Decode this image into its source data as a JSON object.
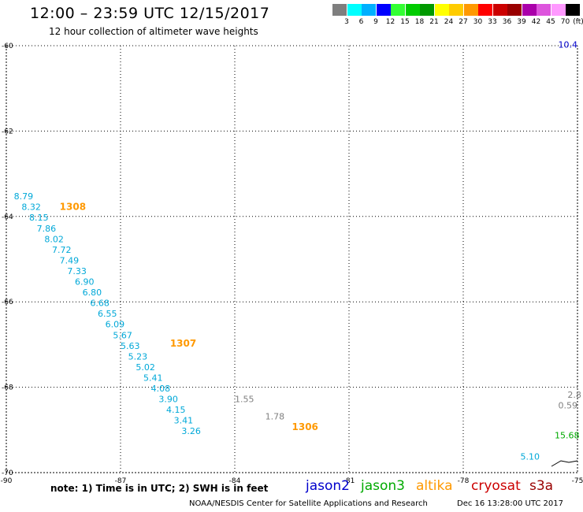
{
  "header": {
    "title": "12:00 – 23:59 UTC 12/15/2017",
    "subtitle": "12 hour collection of altimeter wave heights"
  },
  "legend": {
    "colors": [
      "#7f7f7f",
      "#00ffff",
      "#00b0ff",
      "#0000ff",
      "#33ff33",
      "#00cc00",
      "#009900",
      "#ffff00",
      "#ffcc00",
      "#ff9900",
      "#ff0000",
      "#cc0000",
      "#990000",
      "#aa00aa",
      "#dd55dd",
      "#ff99ff",
      "#000000"
    ],
    "ticks": [
      "3",
      "6",
      "9",
      "12",
      "15",
      "18",
      "21",
      "24",
      "27",
      "30",
      "33",
      "36",
      "39",
      "42",
      "45",
      "70"
    ],
    "unit": "(ft)"
  },
  "chart_data": {
    "type": "scatter",
    "title": "12:00 – 23:59 UTC 12/15/2017",
    "subtitle": "12 hour collection of altimeter wave heights",
    "xlim": [
      -90,
      -75
    ],
    "ylim": [
      -70,
      -60
    ],
    "x_ticks": [
      "-90",
      "-87",
      "-84",
      "-81",
      "-78",
      "-75"
    ],
    "y_ticks": [
      "-60",
      "-62",
      "-64",
      "-66",
      "-68",
      "-70"
    ],
    "grid": true,
    "series": [
      {
        "name": "jason2",
        "color": "#0000cc",
        "points": [
          {
            "lon": -75.0,
            "lat": -60.05,
            "label": "10.4"
          }
        ]
      },
      {
        "name": "jason3",
        "color": "#00aa00",
        "points": [
          {
            "lon": -75.6,
            "lat": -69.2,
            "label": "15.68"
          }
        ]
      },
      {
        "name": "altika",
        "color": "#ff9900",
        "points": [
          {
            "lon": -88.6,
            "lat": -63.85,
            "label": "1308"
          },
          {
            "lon": -85.7,
            "lat": -67.05,
            "label": "1307"
          },
          {
            "lon": -82.5,
            "lat": -69.0,
            "label": "1306"
          }
        ]
      },
      {
        "name": "cyan",
        "color": "#00a8d8",
        "points": [
          {
            "lon": -89.8,
            "lat": -63.6,
            "label": "8.79"
          },
          {
            "lon": -89.6,
            "lat": -63.85,
            "label": "8.32"
          },
          {
            "lon": -89.4,
            "lat": -64.1,
            "label": "8.15"
          },
          {
            "lon": -89.2,
            "lat": -64.35,
            "label": "7.86"
          },
          {
            "lon": -89.0,
            "lat": -64.6,
            "label": "8.02"
          },
          {
            "lon": -88.8,
            "lat": -64.85,
            "label": "7.72"
          },
          {
            "lon": -88.6,
            "lat": -65.1,
            "label": "7.49"
          },
          {
            "lon": -88.4,
            "lat": -65.35,
            "label": "7.33"
          },
          {
            "lon": -88.2,
            "lat": -65.6,
            "label": "6.90"
          },
          {
            "lon": -88.0,
            "lat": -65.85,
            "label": "6.80"
          },
          {
            "lon": -87.8,
            "lat": -66.1,
            "label": "6.68"
          },
          {
            "lon": -87.6,
            "lat": -66.35,
            "label": "6.55"
          },
          {
            "lon": -87.4,
            "lat": -66.6,
            "label": "6.09"
          },
          {
            "lon": -87.2,
            "lat": -66.85,
            "label": "5.67"
          },
          {
            "lon": -87.0,
            "lat": -67.1,
            "label": "5.63"
          },
          {
            "lon": -86.8,
            "lat": -67.35,
            "label": "5.23"
          },
          {
            "lon": -86.6,
            "lat": -67.6,
            "label": "5.02"
          },
          {
            "lon": -86.4,
            "lat": -67.85,
            "label": "5.41"
          },
          {
            "lon": -86.2,
            "lat": -68.1,
            "label": "4.08"
          },
          {
            "lon": -86.0,
            "lat": -68.35,
            "label": "3.90"
          },
          {
            "lon": -85.8,
            "lat": -68.6,
            "label": "4.15"
          },
          {
            "lon": -85.6,
            "lat": -68.85,
            "label": "3.41"
          },
          {
            "lon": -85.4,
            "lat": -69.1,
            "label": "3.26"
          },
          {
            "lon": -76.5,
            "lat": -69.7,
            "label": "5.10"
          }
        ]
      },
      {
        "name": "gray",
        "color": "#808080",
        "points": [
          {
            "lon": -84.0,
            "lat": -68.35,
            "label": "1.55"
          },
          {
            "lon": -83.2,
            "lat": -68.75,
            "label": "1.78"
          },
          {
            "lon": -75.0,
            "lat": -68.5,
            "label": "0.59"
          },
          {
            "lon": -74.9,
            "lat": -68.25,
            "label": "2.8"
          }
        ]
      }
    ]
  },
  "bottom": {
    "note": "note: 1) Time is in UTC; 2) SWH is in feet",
    "satellites": [
      {
        "name": "jason2",
        "color": "#0000cc"
      },
      {
        "name": "jason3",
        "color": "#00aa00"
      },
      {
        "name": "altika",
        "color": "#ff9900"
      },
      {
        "name": "cryosat",
        "color": "#cc0000"
      },
      {
        "name": "s3a",
        "color": "#990000"
      }
    ],
    "credit": "NOAA/NESDIS Center for Satellite Applications and Research",
    "timestamp": "Dec 16 13:28:00 UTC 2017"
  }
}
